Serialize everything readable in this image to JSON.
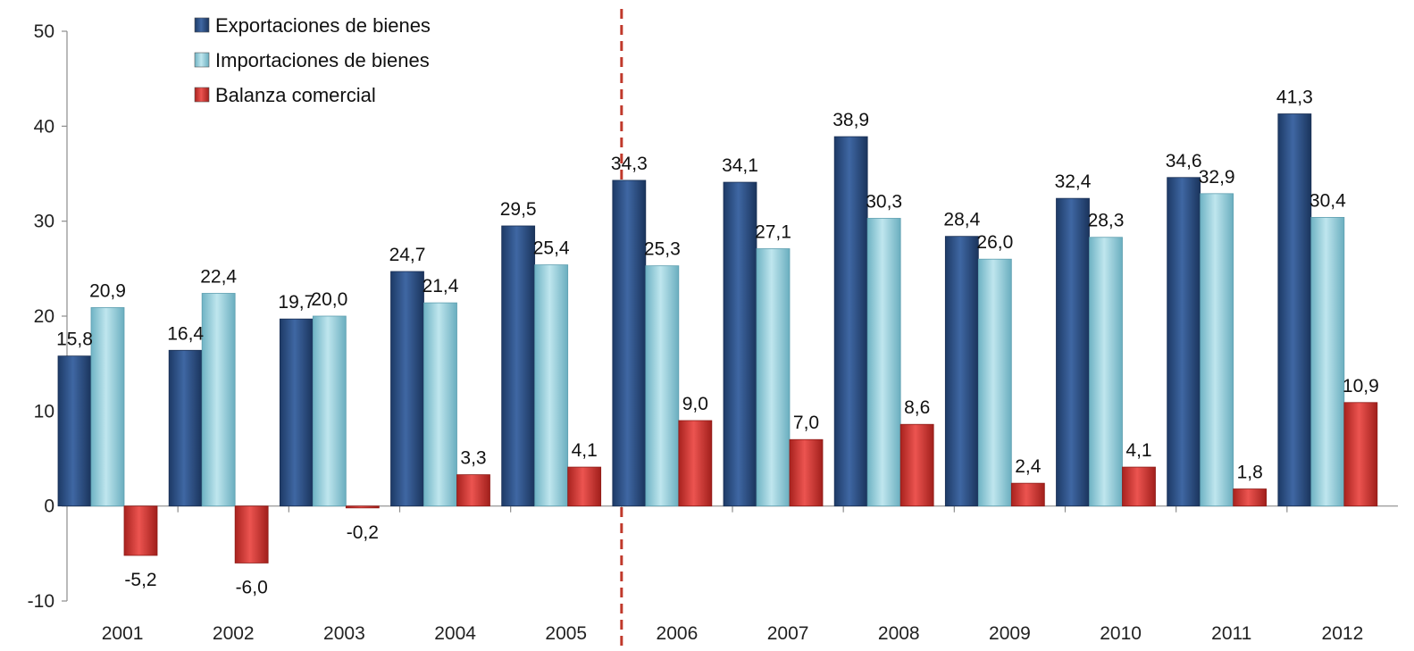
{
  "chart_data": {
    "type": "bar",
    "categories": [
      "2001",
      "2002",
      "2003",
      "2004",
      "2005",
      "2006",
      "2007",
      "2008",
      "2009",
      "2010",
      "2011",
      "2012"
    ],
    "series": [
      {
        "name": "Exportaciones de bienes",
        "values": [
          15.8,
          16.4,
          19.7,
          24.7,
          29.5,
          34.3,
          34.1,
          38.9,
          28.4,
          32.4,
          34.6,
          41.3
        ],
        "labels": [
          "15,8",
          "16,4",
          "19,7",
          "24,7",
          "29,5",
          "34,3",
          "34,1",
          "38,9",
          "28,4",
          "32,4",
          "34,6",
          "41,3"
        ]
      },
      {
        "name": "Importaciones de bienes",
        "values": [
          20.9,
          22.4,
          20.0,
          21.4,
          25.4,
          25.3,
          27.1,
          30.3,
          26.0,
          28.3,
          32.9,
          30.4
        ],
        "labels": [
          "20,9",
          "22,4",
          "20,0",
          "21,4",
          "25,4",
          "25,3",
          "27,1",
          "30,3",
          "26,0",
          "28,3",
          "32,9",
          "30,4"
        ]
      },
      {
        "name": "Balanza comercial",
        "values": [
          -5.2,
          -6.0,
          -0.2,
          3.3,
          4.1,
          9.0,
          7.0,
          8.6,
          2.4,
          4.1,
          1.8,
          10.9
        ],
        "labels": [
          "-5,2",
          "-6,0",
          "-0,2",
          "3,3",
          "4,1",
          "9,0",
          "7,0",
          "8,6",
          "2,4",
          "4,1",
          "1,8",
          "10,9"
        ]
      }
    ],
    "yticks": [
      -10,
      0,
      10,
      20,
      30,
      40,
      50
    ],
    "ylim": [
      -10,
      50
    ],
    "divider_after": "2005",
    "legend_position": "top-left",
    "grid": false,
    "colors": {
      "exports": "#2e5288",
      "imports": "#92cdda",
      "balance": "#d63a35",
      "divider": "#c0392b"
    }
  }
}
